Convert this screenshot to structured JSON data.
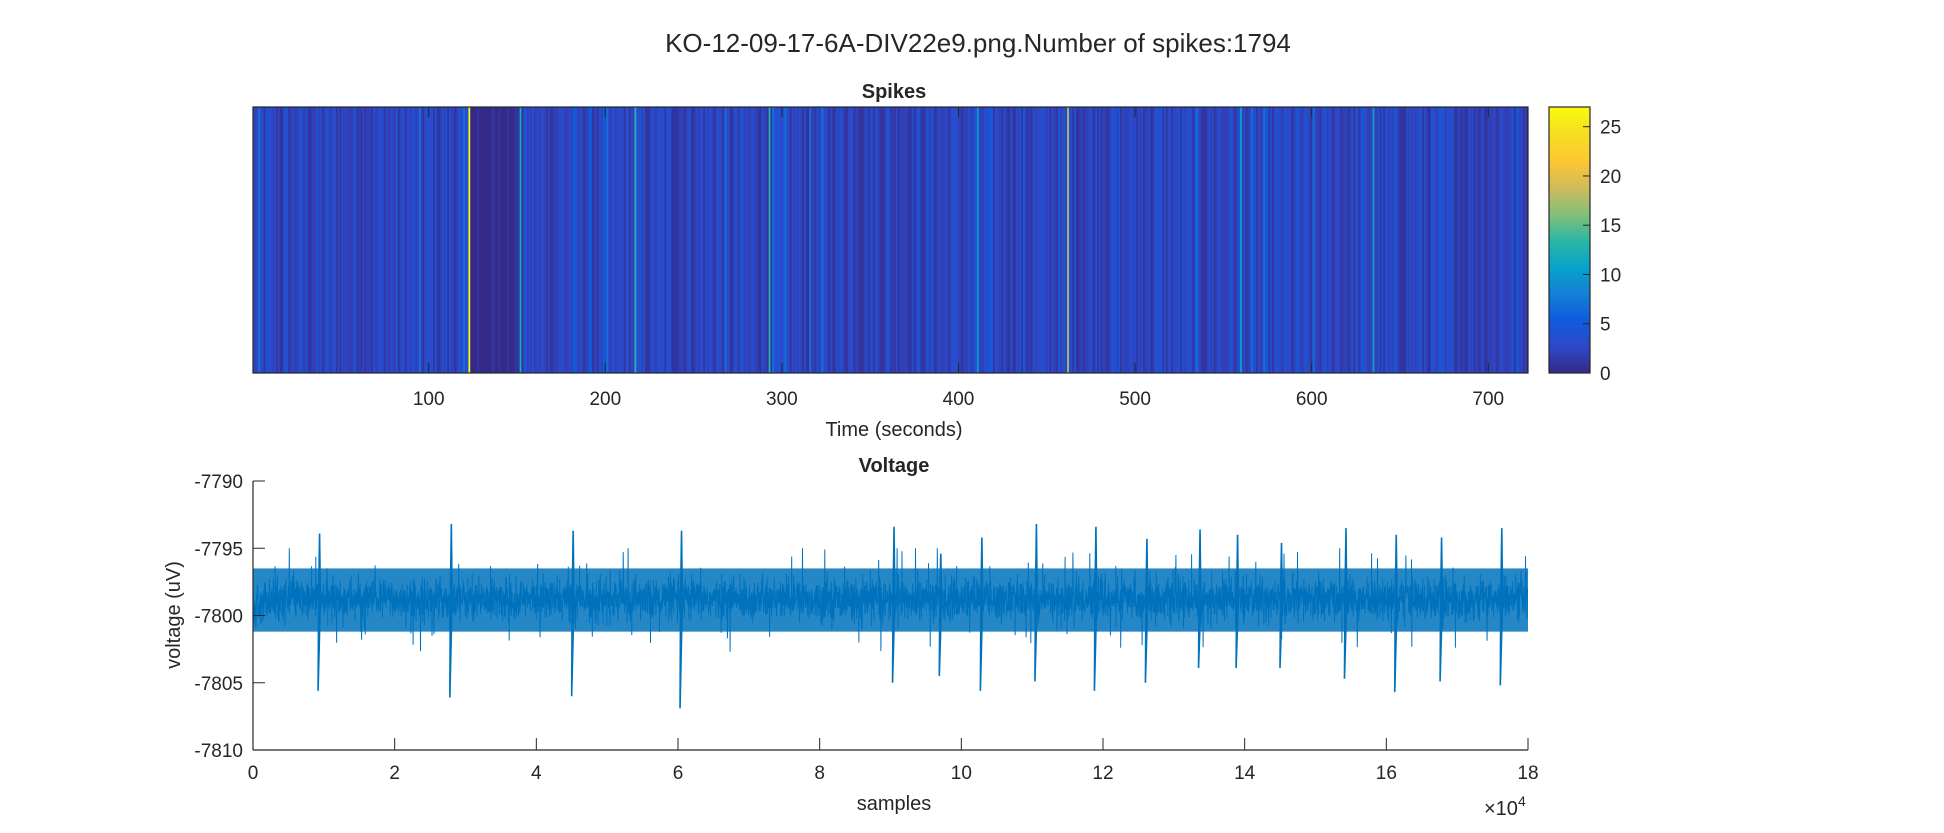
{
  "figure": {
    "suptitle": "KO-12-09-17-6A-DIV22e9.png.Number of spikes:1794"
  },
  "chart_data": [
    {
      "type": "heatmap",
      "title": "Spikes",
      "xlabel": "Time (seconds)",
      "ylabel": "",
      "xlim": [
        0.5,
        722.5
      ],
      "xticks": [
        100,
        200,
        300,
        400,
        500,
        600,
        700
      ],
      "xtick_labels": [
        "100",
        "200",
        "300",
        "400",
        "500",
        "600",
        "700"
      ],
      "bin_seconds": 1,
      "n_bins": 722,
      "colormap": "parula",
      "colorbar": {
        "limits": [
          0,
          27
        ],
        "ticks": [
          0,
          5,
          10,
          15,
          20,
          25
        ],
        "tick_labels": [
          "0",
          "5",
          "10",
          "15",
          "20",
          "25"
        ],
        "placement": "right"
      },
      "notable_bins": [
        {
          "second": 123,
          "count": 27
        },
        {
          "second": 152,
          "count": 12
        },
        {
          "second": 217,
          "count": 13
        },
        {
          "second": 293,
          "count": 13
        },
        {
          "second": 411,
          "count": 10
        },
        {
          "second": 462,
          "count": 18
        },
        {
          "second": 560,
          "count": 11
        },
        {
          "second": 635,
          "count": 11
        }
      ],
      "total_spikes": 1794,
      "low_activity_ranges": [
        [
          124,
          150
        ]
      ]
    },
    {
      "type": "line",
      "title": "Voltage",
      "xlabel": "samples",
      "ylabel": "voltage (uV)",
      "xlim": [
        0,
        180000
      ],
      "ylim": [
        -7810,
        -7790
      ],
      "x_exponent_label": "×10",
      "x_exponent": "4",
      "xticks": [
        0,
        20000,
        40000,
        60000,
        80000,
        100000,
        120000,
        140000,
        160000,
        180000
      ],
      "xtick_labels": [
        "0",
        "2",
        "4",
        "6",
        "8",
        "10",
        "12",
        "14",
        "16",
        "18"
      ],
      "yticks": [
        -7810,
        -7805,
        -7800,
        -7795,
        -7790
      ],
      "ytick_labels": [
        "-7810",
        "-7805",
        "-7800",
        "-7795",
        "-7790"
      ],
      "series": [
        {
          "name": "voltage",
          "color": "#0072BD",
          "baseline": -7798.8,
          "noise_band": [
            -7801.2,
            -7796.5
          ],
          "spikes": [
            {
              "sample": 9400,
              "peak": -7793.9,
              "trough": -7805.6
            },
            {
              "sample": 28000,
              "peak": -7793.2,
              "trough": -7806.1
            },
            {
              "sample": 45200,
              "peak": -7793.7,
              "trough": -7806.0
            },
            {
              "sample": 60500,
              "peak": -7793.7,
              "trough": -7806.9
            },
            {
              "sample": 90500,
              "peak": -7793.4,
              "trough": -7805.0
            },
            {
              "sample": 97100,
              "peak": -7795.4,
              "trough": -7804.5
            },
            {
              "sample": 102900,
              "peak": -7794.2,
              "trough": -7805.6
            },
            {
              "sample": 110600,
              "peak": -7793.2,
              "trough": -7804.9
            },
            {
              "sample": 119000,
              "peak": -7793.4,
              "trough": -7805.6
            },
            {
              "sample": 126200,
              "peak": -7794.3,
              "trough": -7805.0
            },
            {
              "sample": 133700,
              "peak": -7793.6,
              "trough": -7803.9
            },
            {
              "sample": 139000,
              "peak": -7794.0,
              "trough": -7803.9
            },
            {
              "sample": 145200,
              "peak": -7794.6,
              "trough": -7803.9
            },
            {
              "sample": 154300,
              "peak": -7793.5,
              "trough": -7804.7
            },
            {
              "sample": 161400,
              "peak": -7794.0,
              "trough": -7805.7
            },
            {
              "sample": 167800,
              "peak": -7794.2,
              "trough": -7804.9
            },
            {
              "sample": 176300,
              "peak": -7793.5,
              "trough": -7805.2
            }
          ]
        }
      ]
    }
  ]
}
